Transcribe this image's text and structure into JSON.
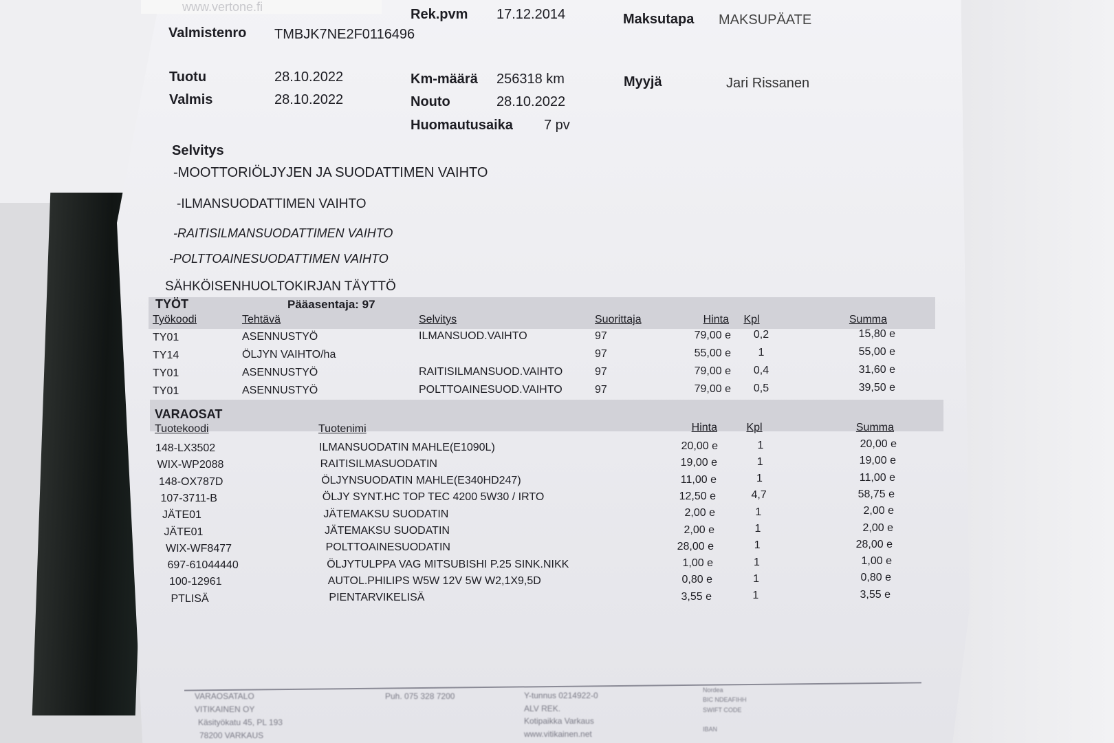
{
  "header": {
    "sticker_text": "www.vertone.fi",
    "rek_pvm_label": "Rek.pvm",
    "rek_pvm": "17.12.2014",
    "maksutapa_label": "Maksutapa",
    "maksutapa": "MAKSUPÄATE",
    "valmistenro_label": "Valmistenro",
    "valmistenro": "TMBJK7NE2F0116496",
    "tuotu_label": "Tuotu",
    "tuotu": "28.10.2022",
    "valmis_label": "Valmis",
    "valmis": "28.10.2022",
    "km_label": "Km-määrä",
    "km": "256318 km",
    "nouto_label": "Nouto",
    "nouto": "28.10.2022",
    "huomautus_label": "Huomautusaika",
    "huomautus": "7 pv",
    "myyja_label": "Myyjä",
    "myyja": "Jari Rissanen"
  },
  "selvitys": {
    "title": "Selvitys",
    "lines": [
      "-MOOTTORIÖLJYJEN JA SUODATTIMEN VAIHTO",
      "-ILMANSUODATTIMEN VAIHTO",
      "-RAITISILMANSUODATTIMEN VAIHTO",
      "-POLTTOAINESUODATTIMEN VAIHTO",
      "SÄHKÖISENHUOLTOKIRJAN TÄYTTÖ"
    ]
  },
  "tyot": {
    "title": "TYÖT",
    "paaasentaja": "Pääasentaja: 97",
    "headers": [
      "Työkoodi",
      "Tehtävä",
      "Selvitys",
      "Suorittaja",
      "Hinta",
      "Kpl",
      "Summa"
    ],
    "rows": [
      [
        "TY01",
        "ASENNUSTYÖ",
        "ILMANSUOD.VAIHTO",
        "97",
        "79,00 e",
        "0,2",
        "15,80 e"
      ],
      [
        "TY14",
        "ÖLJYN VAIHTO/ha",
        "",
        "97",
        "55,00 e",
        "1",
        "55,00 e"
      ],
      [
        "TY01",
        "ASENNUSTYÖ",
        "RAITISILMANSUOD.VAIHTO",
        "97",
        "79,00 e",
        "0,4",
        "31,60 e"
      ],
      [
        "TY01",
        "ASENNUSTYÖ",
        "POLTTOAINESUOD.VAIHTO",
        "97",
        "79,00 e",
        "0,5",
        "39,50 e"
      ]
    ]
  },
  "varaosat": {
    "title": "VARAOSAT",
    "headers": [
      "Tuotekoodi",
      "Tuotenimi",
      "Hinta",
      "Kpl",
      "Summa"
    ],
    "rows": [
      [
        "148-LX3502",
        "ILMANSUODATIN MAHLE(E1090L)",
        "20,00 e",
        "1",
        "20,00 e"
      ],
      [
        "WIX-WP2088",
        "RAITISILMASUODATIN",
        "19,00 e",
        "1",
        "19,00 e"
      ],
      [
        "148-OX787D",
        "ÖLJYNSUODATIN MAHLE(E340HD247)",
        "11,00 e",
        "1",
        "11,00 e"
      ],
      [
        "107-3711-B",
        "ÖLJY SYNT.HC TOP TEC 4200 5W30 / IRTO",
        "12,50 e",
        "4,7",
        "58,75 e"
      ],
      [
        "JÄTE01",
        "JÄTEMAKSU SUODATIN",
        "2,00 e",
        "1",
        "2,00 e"
      ],
      [
        "JÄTE01",
        "JÄTEMAKSU SUODATIN",
        "2,00 e",
        "1",
        "2,00 e"
      ],
      [
        "WIX-WF8477",
        "POLTTOAINESUODATIN",
        "28,00 e",
        "1",
        "28,00 e"
      ],
      [
        "697-61044440",
        "ÖLJYTULPPA VAG MITSUBISHI P.25 SINK.NIKK",
        "1,00 e",
        "1",
        "1,00 e"
      ],
      [
        "100-12961",
        "AUTOL.PHILIPS W5W 12V 5W W2,1X9,5D",
        "0,80 e",
        "1",
        "0,80 e"
      ],
      [
        "PTLISÄ",
        "PIENTARVIKELISÄ",
        "3,55 e",
        "1",
        "3,55 e"
      ]
    ]
  },
  "footer": {
    "company": [
      "VARAOSATALO",
      "VITIKAINEN OY",
      "Käsityökatu 45, PL 193",
      "78200 VARKAUS"
    ],
    "phone": "Puh. 075 328 7200",
    "ytunnus": [
      "Y-tunnus   0214922-0",
      "ALV REK.",
      "Kotipaikka   Varkaus",
      "www.vitikainen.net"
    ],
    "bank": [
      "Nordea",
      "BIC NDEAFIHH",
      "SWIFT CODE",
      "IBAN"
    ]
  }
}
